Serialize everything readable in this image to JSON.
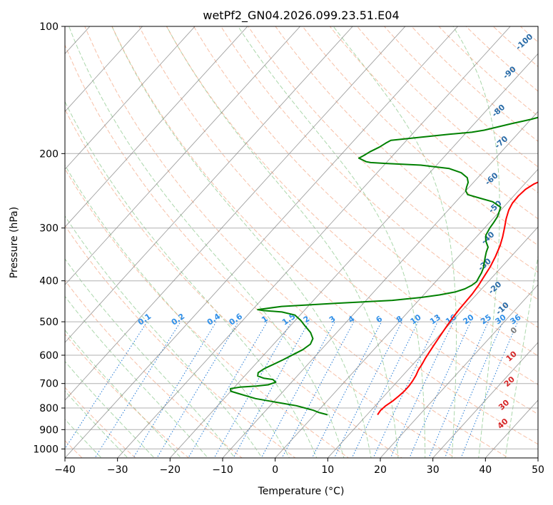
{
  "chart_data": {
    "type": "line",
    "title": "wetPf2_GN04.2026.099.23.51.E04",
    "xlabel": "Temperature (°C)",
    "ylabel": "Pressure (hPa)",
    "xlim": [
      -40,
      50
    ],
    "ylim": [
      1050,
      100
    ],
    "y_scale": "log",
    "grid": true,
    "x_ticks": [
      -40,
      -30,
      -20,
      -10,
      0,
      10,
      20,
      30,
      40,
      50
    ],
    "y_ticks": [
      100,
      200,
      300,
      400,
      500,
      600,
      700,
      800,
      900,
      1000
    ],
    "series": [
      {
        "role": "temperature",
        "color": "#ff0000",
        "points": [
          [
            12,
            830
          ],
          [
            11.8,
            810
          ],
          [
            12,
            790
          ],
          [
            12.5,
            770
          ],
          [
            12.8,
            750
          ],
          [
            13,
            730
          ],
          [
            13,
            710
          ],
          [
            12.8,
            690
          ],
          [
            12.5,
            670
          ],
          [
            12,
            650
          ],
          [
            11.7,
            630
          ],
          [
            11.3,
            610
          ],
          [
            11,
            590
          ],
          [
            10.7,
            570
          ],
          [
            10.4,
            550
          ],
          [
            10.1,
            530
          ],
          [
            9.8,
            510
          ],
          [
            9.5,
            490
          ],
          [
            9.3,
            470
          ],
          [
            9.2,
            450
          ],
          [
            9.1,
            430
          ],
          [
            8.8,
            410
          ],
          [
            8.3,
            390
          ],
          [
            7.8,
            370
          ],
          [
            7,
            350
          ],
          [
            6,
            330
          ],
          [
            5,
            315
          ],
          [
            3.8,
            300
          ],
          [
            2.5,
            285
          ],
          [
            1.5,
            272
          ],
          [
            1,
            262
          ],
          [
            0.9,
            252
          ],
          [
            1.1,
            243
          ],
          [
            1.8,
            236
          ],
          [
            3,
            230
          ],
          [
            5,
            222
          ],
          [
            7.5,
            214
          ],
          [
            10,
            206
          ],
          [
            12,
            199
          ],
          [
            14,
            190
          ],
          [
            15.5,
            181
          ],
          [
            17.5,
            170
          ],
          [
            19,
            160
          ],
          [
            20,
            150
          ],
          [
            21,
            140
          ],
          [
            22,
            130
          ],
          [
            22.7,
            120
          ],
          [
            23.5,
            112
          ],
          [
            24.5,
            106
          ],
          [
            25.5,
            100
          ]
        ]
      },
      {
        "role": "dewpoint",
        "color": "#008000",
        "points": [
          [
            2.5,
            830
          ],
          [
            0.5,
            820
          ],
          [
            -1,
            810
          ],
          [
            -3,
            800
          ],
          [
            -5,
            790
          ],
          [
            -8,
            780
          ],
          [
            -11,
            770
          ],
          [
            -14,
            760
          ],
          [
            -16,
            750
          ],
          [
            -18,
            740
          ],
          [
            -20,
            730
          ],
          [
            -20.5,
            720
          ],
          [
            -19,
            714
          ],
          [
            -16,
            710
          ],
          [
            -14,
            705
          ],
          [
            -13,
            695
          ],
          [
            -14,
            685
          ],
          [
            -16,
            680
          ],
          [
            -17.5,
            672
          ],
          [
            -18,
            660
          ],
          [
            -17.5,
            645
          ],
          [
            -16.5,
            630
          ],
          [
            -15.5,
            615
          ],
          [
            -14.5,
            598
          ],
          [
            -13.5,
            582
          ],
          [
            -13,
            565
          ],
          [
            -13.5,
            548
          ],
          [
            -15,
            530
          ],
          [
            -17,
            513
          ],
          [
            -19,
            496
          ],
          [
            -21,
            482
          ],
          [
            -24,
            474
          ],
          [
            -28,
            470
          ],
          [
            -29,
            468
          ],
          [
            -25,
            460
          ],
          [
            -15,
            452
          ],
          [
            -5,
            445
          ],
          [
            0,
            438
          ],
          [
            3,
            432
          ],
          [
            5.5,
            425
          ],
          [
            6.8,
            418
          ],
          [
            7.5,
            410
          ],
          [
            7.8,
            402
          ],
          [
            7.5,
            393
          ],
          [
            7.2,
            383
          ],
          [
            6.7,
            373
          ],
          [
            6,
            363
          ],
          [
            5.2,
            352
          ],
          [
            4.5,
            342
          ],
          [
            4,
            333
          ],
          [
            2.5,
            322
          ],
          [
            1.5,
            312
          ],
          [
            1,
            300
          ],
          [
            0.8,
            291
          ],
          [
            0.5,
            282
          ],
          [
            -0.5,
            268
          ],
          [
            -3,
            260
          ],
          [
            -6,
            255
          ],
          [
            -9,
            250
          ],
          [
            -10,
            245
          ],
          [
            -10.5,
            240
          ],
          [
            -11,
            234
          ],
          [
            -12,
            228
          ],
          [
            -14,
            222
          ],
          [
            -17,
            217
          ],
          [
            -23,
            213
          ],
          [
            -30,
            211
          ],
          [
            -33,
            210
          ],
          [
            -34,
            209
          ],
          [
            -35,
            207
          ],
          [
            -36,
            205
          ],
          [
            -35.5,
            202
          ],
          [
            -35,
            198
          ],
          [
            -34,
            193
          ],
          [
            -33.5,
            189
          ],
          [
            -33,
            186
          ],
          [
            -28,
            183
          ],
          [
            -23,
            180
          ],
          [
            -19,
            178
          ],
          [
            -17,
            176
          ],
          [
            -15,
            173
          ],
          [
            -13,
            170
          ],
          [
            -10,
            166
          ],
          [
            -7,
            161
          ],
          [
            -5,
            156
          ],
          [
            -4,
            150
          ],
          [
            -3.5,
            144
          ],
          [
            -4,
            138
          ],
          [
            -5,
            132
          ],
          [
            -5.5,
            126
          ],
          [
            -5.8,
            121
          ],
          [
            -5.2,
            117
          ],
          [
            -4,
            113
          ],
          [
            -2.5,
            109
          ],
          [
            -1,
            106
          ],
          [
            0.5,
            103
          ],
          [
            0,
            100.5
          ]
        ]
      }
    ],
    "dry_adiabat_labels": [
      "-100",
      "-90",
      "-80",
      "-70",
      "-60",
      "-50",
      "-40",
      "-30",
      "-20",
      "-10",
      "0",
      "10",
      "20",
      "30",
      "40"
    ],
    "mixing_ratio_labels": [
      "0.1",
      "0.2",
      "0.4",
      "0.6",
      "1",
      "1.5",
      "2",
      "3",
      "4",
      "6",
      "8",
      "10",
      "13",
      "16",
      "20",
      "25",
      "30",
      "36"
    ],
    "mixing_ratio_values": [
      0.1,
      0.2,
      0.4,
      0.6,
      1,
      1.5,
      2,
      3,
      4,
      6,
      8,
      10,
      13,
      16,
      20,
      25,
      30,
      36
    ],
    "colors": {
      "temperature": "#ff0000",
      "dewpoint": "#008000",
      "isotherm": "#808080",
      "dry_adiabat": "#f4a582",
      "moist_adiabat": "#8fc98f",
      "mixing_ratio": "#1f77d4",
      "dry_adiabat_label_cold": "#2a6ca8",
      "dry_adiabat_label_warm": "#d62728",
      "zero_label": "#7f7f7f"
    }
  }
}
